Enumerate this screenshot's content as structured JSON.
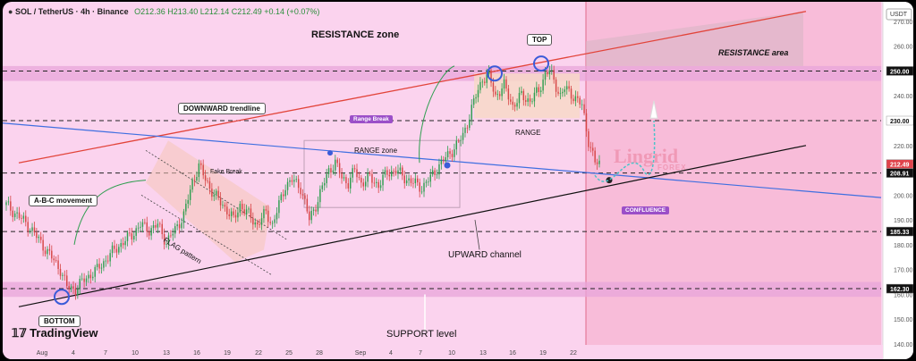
{
  "header": {
    "symbol": "SOL / TetherUS · 4h · Binance",
    "ohlc": "O212.36 H213.40 L212.14 C212.49 +0.14 (+0.07%)",
    "currency": "USDT"
  },
  "branding": {
    "logo_text": "TradingView",
    "watermark": "Lingrid",
    "watermark_sub": "FOREX"
  },
  "annotations": {
    "resistance_zone": "RESISTANCE zone",
    "resistance_area": "RESISTANCE area",
    "top": "TOP",
    "bottom": "BOTTOM",
    "downward_trendline": "DOWNWARD trendline",
    "abc_movement": "A-B-C movement",
    "fake_break": "Fake Break",
    "flag_pattern": "FLAG pattern",
    "range_zone": "RANGE zone",
    "range_break": "Range Break",
    "range": "RANGE",
    "upward_channel": "UPWARD channel",
    "support_level": "SUPPORT level",
    "confluence": "CONFLUENCE"
  },
  "colors": {
    "background": "#fbd3ee",
    "zone_band": "#e8a6d9",
    "forecast_shade": "#f6a9c8",
    "resistance_line": "#e2443a",
    "downward_line": "#3f6fe0",
    "channel_line": "#111111",
    "candle_up": "#2e9e4f",
    "candle_down": "#d64545",
    "range_box": "#f7d8c8",
    "flag_box": "#f6c6b8",
    "highlight_price": "#e0434b"
  },
  "chart_data": {
    "type": "candlestick",
    "symbol": "SOL / TetherUS",
    "timeframe": "4h",
    "exchange": "Binance",
    "y_axis": {
      "min": 140,
      "max": 275,
      "ticks": [
        140,
        150,
        160,
        170,
        180,
        190,
        200,
        210,
        220,
        230,
        240,
        250,
        260,
        270
      ]
    },
    "price_labels": [
      {
        "value": 250.0,
        "text": "250.00",
        "style": "dark"
      },
      {
        "value": 230.0,
        "text": "230.00",
        "style": "light"
      },
      {
        "value": 212.49,
        "text": "212.49",
        "style": "highlight"
      },
      {
        "value": 208.91,
        "text": "208.91",
        "style": "dark"
      },
      {
        "value": 185.33,
        "text": "185.33",
        "style": "dark"
      },
      {
        "value": 162.3,
        "text": "162.30",
        "style": "dark"
      }
    ],
    "x_ticks": [
      "Aug",
      "4",
      "7",
      "10",
      "13",
      "16",
      "19",
      "22",
      "25",
      "28",
      "Sep",
      "4",
      "7",
      "10",
      "13",
      "16",
      "19",
      "22"
    ],
    "close_path": [
      [
        0,
        196
      ],
      [
        5,
        192
      ],
      [
        10,
        188
      ],
      [
        15,
        182
      ],
      [
        20,
        176
      ],
      [
        25,
        170
      ],
      [
        28,
        163
      ],
      [
        32,
        162
      ],
      [
        36,
        166
      ],
      [
        42,
        170
      ],
      [
        50,
        178
      ],
      [
        58,
        184
      ],
      [
        62,
        188
      ],
      [
        66,
        186
      ],
      [
        70,
        188
      ],
      [
        74,
        181
      ],
      [
        78,
        186
      ],
      [
        82,
        192
      ],
      [
        86,
        205
      ],
      [
        89,
        212
      ],
      [
        91,
        208
      ],
      [
        94,
        203
      ],
      [
        98,
        198
      ],
      [
        102,
        194
      ],
      [
        105,
        190
      ],
      [
        108,
        196
      ],
      [
        112,
        192
      ],
      [
        116,
        188
      ],
      [
        120,
        193
      ],
      [
        123,
        188
      ],
      [
        126,
        196
      ],
      [
        129,
        204
      ],
      [
        132,
        206
      ],
      [
        136,
        203
      ],
      [
        138,
        197
      ],
      [
        140,
        190
      ],
      [
        143,
        196
      ],
      [
        146,
        203
      ],
      [
        149,
        210
      ],
      [
        152,
        213
      ],
      [
        155,
        207
      ],
      [
        158,
        205
      ],
      [
        161,
        210
      ],
      [
        164,
        205
      ],
      [
        168,
        207
      ],
      [
        172,
        204
      ],
      [
        176,
        209
      ],
      [
        180,
        210
      ],
      [
        184,
        207
      ],
      [
        188,
        205
      ],
      [
        192,
        203
      ],
      [
        196,
        207
      ],
      [
        200,
        212
      ],
      [
        204,
        216
      ],
      [
        208,
        220
      ],
      [
        211,
        224
      ],
      [
        214,
        232
      ],
      [
        217,
        240
      ],
      [
        220,
        247
      ],
      [
        223,
        248
      ],
      [
        226,
        240
      ],
      [
        230,
        244
      ],
      [
        234,
        236
      ],
      [
        238,
        240
      ],
      [
        242,
        238
      ],
      [
        246,
        242
      ],
      [
        249,
        249
      ],
      [
        251,
        250
      ],
      [
        253,
        246
      ],
      [
        256,
        240
      ],
      [
        258,
        243
      ],
      [
        262,
        240
      ],
      [
        266,
        236
      ],
      [
        269,
        222
      ],
      [
        272,
        213
      ],
      [
        275,
        212.49
      ]
    ],
    "candle_count": 275,
    "overlays": {
      "horizontal_levels": [
        250,
        230,
        208.91,
        185.33,
        162.3
      ],
      "zones": [
        {
          "from": 246,
          "to": 252,
          "label": "RESISTANCE zone"
        },
        {
          "from": 159,
          "to": 165,
          "label": "SUPPORT level"
        }
      ],
      "resistance_line": [
        [
          0,
          216
        ],
        [
          370,
          275
        ]
      ],
      "downward_trendline": [
        [
          0,
          229
        ],
        [
          370,
          199
        ]
      ],
      "upward_channel": [
        [
          7,
          155
        ],
        [
          370,
          220
        ]
      ]
    }
  }
}
